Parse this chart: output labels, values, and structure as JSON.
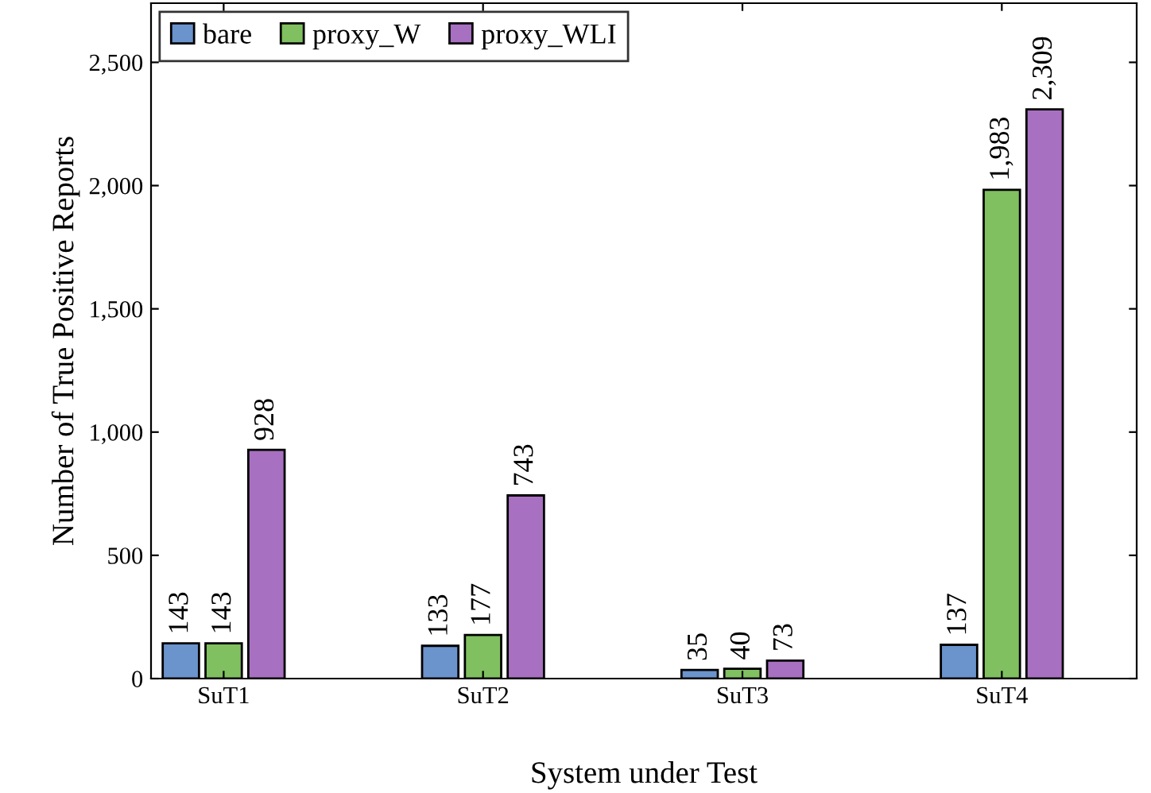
{
  "chart_data": {
    "type": "bar",
    "xlabel": "System under Test",
    "ylabel": "Number of True Positive Reports",
    "categories": [
      "SuT1",
      "SuT2",
      "SuT3",
      "SuT4"
    ],
    "series": [
      {
        "name": "bare",
        "color": "#6b93cc",
        "values": [
          143,
          133,
          35,
          137
        ],
        "value_labels": [
          "143",
          "133",
          "35",
          "137"
        ]
      },
      {
        "name": "proxy_W",
        "color": "#80c060",
        "values": [
          143,
          177,
          40,
          1983
        ],
        "value_labels": [
          "143",
          "177",
          "40",
          "1,983"
        ]
      },
      {
        "name": "proxy_WLI",
        "color": "#a870c0",
        "values": [
          928,
          743,
          73,
          2309
        ],
        "value_labels": [
          "928",
          "743",
          "73",
          "2,309"
        ]
      }
    ],
    "ylim": [
      0,
      2740
    ],
    "yticks": [
      0,
      {
        "value": 500,
        "label": "500"
      },
      {
        "value": 1000,
        "label": "1,000"
      },
      {
        "value": 1500,
        "label": "1,500"
      },
      {
        "value": 2000,
        "label": "2,000"
      },
      {
        "value": 2500,
        "label": "2,500"
      }
    ],
    "legend": "top left",
    "grid": false
  }
}
